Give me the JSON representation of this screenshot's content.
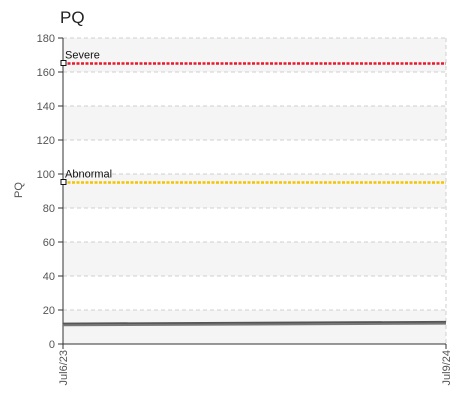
{
  "chart_data": {
    "type": "line",
    "title": "PQ",
    "ylabel": "PQ",
    "xlabel": "",
    "ylim": [
      0,
      180
    ],
    "yticks": [
      0,
      20,
      40,
      60,
      80,
      100,
      120,
      140,
      160,
      180
    ],
    "x_tick_labels": [
      "Jul6/23",
      "Jul9/24"
    ],
    "grid": true,
    "reference_lines": [
      {
        "label": "Severe",
        "value": 165,
        "color": "#e8192c"
      },
      {
        "label": "Abnormal",
        "value": 95,
        "color": "#f2c500"
      }
    ],
    "series": [
      {
        "color": "#555555",
        "x": [
          0,
          1
        ],
        "y": [
          12,
          13
        ]
      },
      {
        "color": "#777777",
        "x": [
          0,
          1
        ],
        "y": [
          11,
          12
        ]
      }
    ]
  }
}
